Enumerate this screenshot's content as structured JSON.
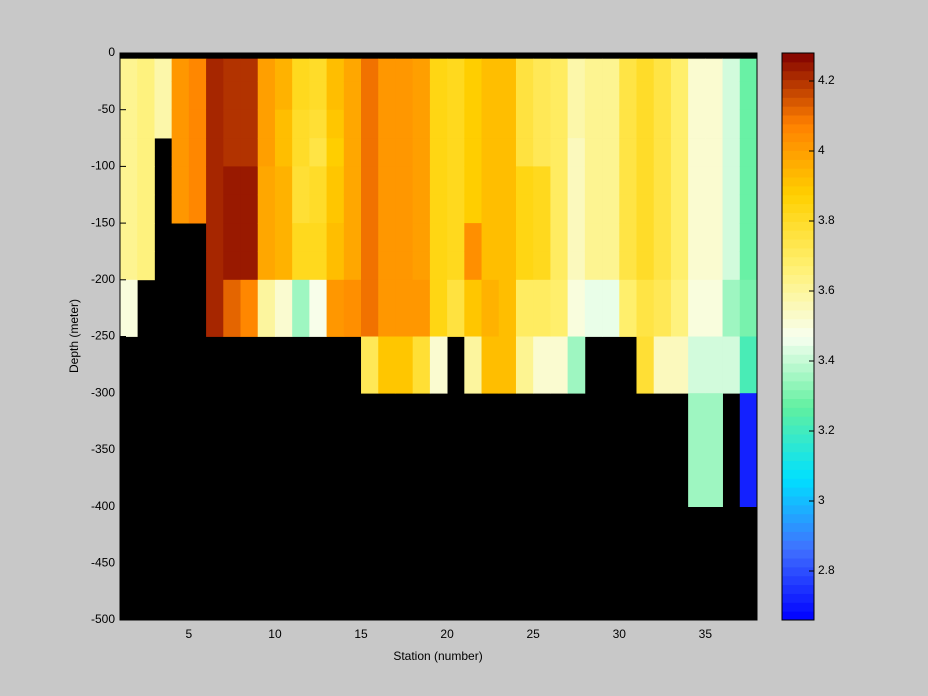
{
  "chart_data": {
    "type": "heatmap",
    "xlabel": "Station (number)",
    "ylabel": "Depth (meter)",
    "xlim": [
      1,
      38
    ],
    "ylim": [
      -500,
      0
    ],
    "xticks": [
      5,
      10,
      15,
      20,
      25,
      30,
      35
    ],
    "yticks": [
      -500,
      -450,
      -400,
      -350,
      -300,
      -250,
      -200,
      -150,
      -100,
      -50,
      0
    ],
    "x": [
      1,
      2,
      3,
      4,
      5,
      6,
      7,
      8,
      9,
      10,
      11,
      12,
      13,
      14,
      15,
      16,
      17,
      18,
      19,
      20,
      21,
      22,
      23,
      24,
      25,
      26,
      27,
      28,
      29,
      30,
      31,
      32,
      33,
      34,
      35,
      36,
      37
    ],
    "y_edges": [
      -5,
      -25,
      -50,
      -75,
      -100,
      -125,
      -150,
      -175,
      -200,
      -250,
      -300,
      -400
    ],
    "background": "#000000",
    "z": [
      [
        3.62,
        3.62,
        3.62,
        3.62,
        3.62,
        3.62,
        3.62,
        3.62,
        3.5,
        null,
        null
      ],
      [
        3.65,
        3.65,
        3.65,
        3.65,
        3.65,
        3.65,
        3.65,
        3.65,
        null,
        null,
        null
      ],
      [
        3.58,
        3.58,
        3.58,
        null,
        null,
        null,
        null,
        null,
        null,
        null,
        null
      ],
      [
        4.02,
        4.02,
        4.02,
        4.02,
        4.02,
        4.02,
        null,
        null,
        null,
        null,
        null
      ],
      [
        4.06,
        4.06,
        4.06,
        4.06,
        4.06,
        4.06,
        null,
        null,
        null,
        null,
        null
      ],
      [
        4.22,
        4.22,
        4.22,
        4.22,
        4.22,
        4.22,
        4.22,
        4.22,
        4.22,
        null,
        null
      ],
      [
        4.2,
        4.2,
        4.2,
        4.2,
        4.24,
        4.24,
        4.24,
        4.24,
        4.12,
        null,
        null
      ],
      [
        4.2,
        4.2,
        4.2,
        4.2,
        4.24,
        4.24,
        4.24,
        4.24,
        4.06,
        null,
        null
      ],
      [
        4.0,
        4.0,
        4.0,
        4.0,
        3.98,
        3.98,
        3.98,
        3.98,
        3.6,
        null,
        null
      ],
      [
        3.95,
        3.95,
        3.92,
        3.92,
        3.95,
        3.95,
        3.95,
        3.95,
        3.52,
        null,
        null
      ],
      [
        3.82,
        3.82,
        3.8,
        3.8,
        3.78,
        3.78,
        3.82,
        3.82,
        3.35,
        null,
        null
      ],
      [
        3.8,
        3.8,
        3.78,
        3.75,
        3.8,
        3.8,
        3.82,
        3.82,
        3.48,
        null,
        null
      ],
      [
        3.92,
        3.92,
        3.9,
        3.88,
        3.9,
        3.9,
        3.92,
        3.92,
        4.02,
        null,
        null
      ],
      [
        3.98,
        3.98,
        3.98,
        3.98,
        3.98,
        3.98,
        3.98,
        3.98,
        4.04,
        null,
        null
      ],
      [
        4.1,
        4.1,
        4.1,
        4.1,
        4.1,
        4.1,
        4.1,
        4.1,
        4.1,
        3.72,
        null
      ],
      [
        4.02,
        4.02,
        4.02,
        4.02,
        4.02,
        4.02,
        4.02,
        4.02,
        4.02,
        3.9,
        null
      ],
      [
        4.02,
        4.02,
        4.02,
        4.02,
        4.02,
        4.02,
        4.02,
        4.02,
        4.02,
        3.9,
        null
      ],
      [
        4.0,
        4.0,
        4.0,
        4.0,
        4.0,
        4.0,
        4.0,
        4.0,
        4.02,
        3.78,
        null
      ],
      [
        3.84,
        3.84,
        3.84,
        3.84,
        3.84,
        3.84,
        3.84,
        3.84,
        3.84,
        3.52,
        null
      ],
      [
        3.82,
        3.82,
        3.82,
        3.82,
        3.82,
        3.82,
        3.82,
        3.82,
        3.76,
        null,
        null
      ],
      [
        3.88,
        3.88,
        3.88,
        3.88,
        3.88,
        3.88,
        4.04,
        4.04,
        3.9,
        3.6,
        null
      ],
      [
        3.92,
        3.92,
        3.92,
        3.92,
        3.92,
        3.92,
        3.92,
        3.92,
        3.95,
        3.92,
        null
      ],
      [
        3.92,
        3.92,
        3.92,
        3.92,
        3.92,
        3.92,
        3.92,
        3.92,
        3.92,
        3.92,
        null
      ],
      [
        3.76,
        3.76,
        3.76,
        3.76,
        3.84,
        3.84,
        3.84,
        3.84,
        3.7,
        3.62,
        null
      ],
      [
        3.72,
        3.72,
        3.72,
        3.72,
        3.82,
        3.82,
        3.82,
        3.82,
        3.7,
        3.52,
        null
      ],
      [
        3.7,
        3.7,
        3.7,
        3.7,
        3.7,
        3.7,
        3.7,
        3.7,
        3.68,
        3.52,
        null
      ],
      [
        3.58,
        3.58,
        3.58,
        3.55,
        3.55,
        3.55,
        3.55,
        3.55,
        3.5,
        3.35,
        null
      ],
      [
        3.62,
        3.62,
        3.62,
        3.62,
        3.62,
        3.62,
        3.62,
        3.62,
        3.45,
        null,
        null
      ],
      [
        3.62,
        3.62,
        3.62,
        3.62,
        3.62,
        3.62,
        3.62,
        3.62,
        3.45,
        null,
        null
      ],
      [
        3.75,
        3.75,
        3.75,
        3.75,
        3.75,
        3.75,
        3.75,
        3.75,
        3.68,
        null,
        null
      ],
      [
        3.8,
        3.8,
        3.8,
        3.8,
        3.8,
        3.8,
        3.8,
        3.8,
        3.75,
        3.78,
        null
      ],
      [
        3.75,
        3.75,
        3.75,
        3.75,
        3.75,
        3.75,
        3.75,
        3.75,
        3.72,
        3.55,
        null
      ],
      [
        3.68,
        3.68,
        3.68,
        3.68,
        3.68,
        3.68,
        3.68,
        3.68,
        3.65,
        3.55,
        null
      ],
      [
        3.52,
        3.52,
        3.52,
        3.52,
        3.52,
        3.52,
        3.52,
        3.52,
        3.5,
        3.42,
        3.35
      ],
      [
        3.52,
        3.52,
        3.52,
        3.52,
        3.52,
        3.52,
        3.52,
        3.52,
        3.5,
        3.42,
        3.35
      ],
      [
        3.42,
        3.42,
        3.42,
        3.42,
        3.42,
        3.42,
        3.42,
        3.42,
        3.35,
        3.42,
        null
      ],
      [
        3.28,
        3.28,
        3.28,
        3.28,
        3.28,
        3.28,
        3.28,
        3.28,
        3.3,
        3.22,
        2.72
      ]
    ],
    "colorbar": {
      "clim": [
        2.66,
        4.28
      ],
      "ticks": [
        2.8,
        3,
        3.2,
        3.4,
        3.6,
        3.8,
        4,
        4.2
      ],
      "colors": [
        "#0000ff",
        "#4070ff",
        "#00e0ff",
        "#60f0a0",
        "#f8fff0",
        "#fff070",
        "#ffd000",
        "#ff8000",
        "#800000"
      ]
    }
  }
}
